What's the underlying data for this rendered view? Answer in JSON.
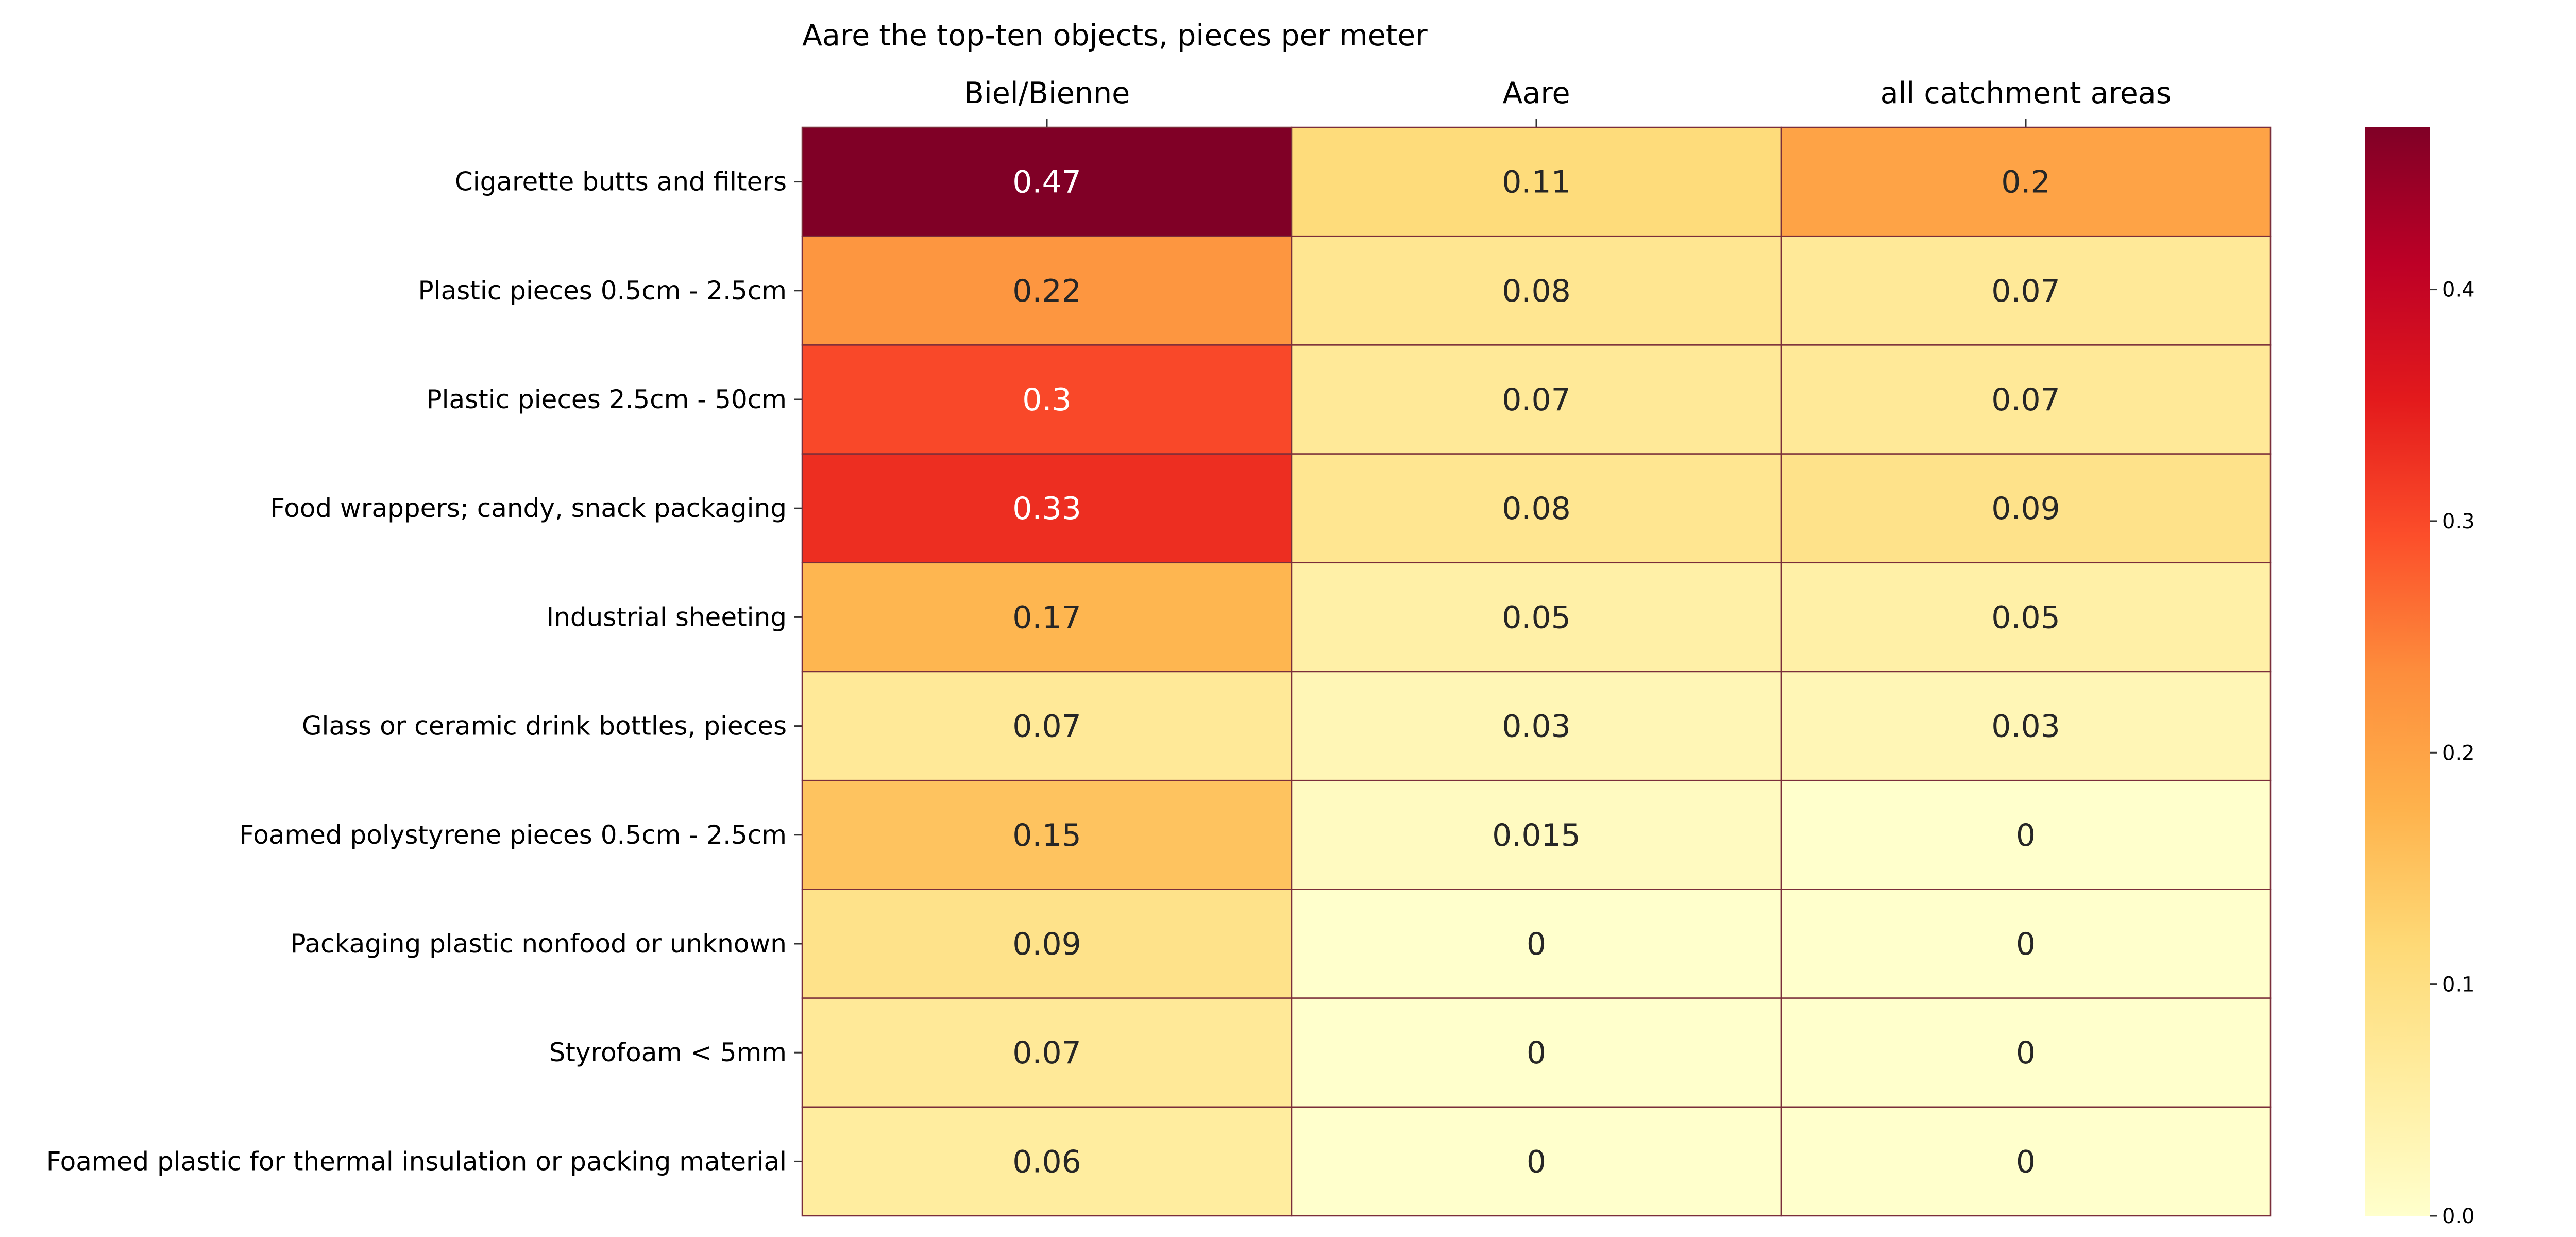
{
  "chart_data": {
    "type": "heatmap",
    "title": "Aare the top-ten objects, pieces per meter",
    "columns": [
      "Biel/Bienne",
      "Aare",
      "all catchment areas"
    ],
    "rows": [
      "Cigarette butts and filters",
      "Plastic pieces 0.5cm - 2.5cm",
      "Plastic pieces 2.5cm - 50cm",
      "Food wrappers; candy, snack packaging",
      "Industrial sheeting",
      "Glass or ceramic drink bottles, pieces",
      "Foamed polystyrene pieces 0.5cm - 2.5cm",
      "Packaging plastic nonfood or unknown",
      "Styrofoam < 5mm",
      "Foamed plastic  for thermal insulation or packing material"
    ],
    "values": [
      [
        0.47,
        0.11,
        0.2
      ],
      [
        0.22,
        0.08,
        0.07
      ],
      [
        0.3,
        0.07,
        0.07
      ],
      [
        0.33,
        0.08,
        0.09
      ],
      [
        0.17,
        0.05,
        0.05
      ],
      [
        0.07,
        0.03,
        0.03
      ],
      [
        0.15,
        0.015,
        0
      ],
      [
        0.09,
        0,
        0
      ],
      [
        0.07,
        0,
        0
      ],
      [
        0.06,
        0,
        0
      ]
    ],
    "value_labels": [
      [
        "0.47",
        "0.11",
        "0.2"
      ],
      [
        "0.22",
        "0.08",
        "0.07"
      ],
      [
        "0.3",
        "0.07",
        "0.07"
      ],
      [
        "0.33",
        "0.08",
        "0.09"
      ],
      [
        "0.17",
        "0.05",
        "0.05"
      ],
      [
        "0.07",
        "0.03",
        "0.03"
      ],
      [
        "0.15",
        "0.015",
        "0"
      ],
      [
        "0.09",
        "0",
        "0"
      ],
      [
        "0.07",
        "0",
        "0"
      ],
      [
        "0.06",
        "0",
        "0"
      ]
    ],
    "colormap": "YlOrRd",
    "cell_border_color": "#7a2e3a",
    "colorbar": {
      "range": [
        0,
        0.47
      ],
      "ticks": [
        0.0,
        0.1,
        0.2,
        0.3,
        0.4
      ],
      "tick_labels": [
        "0.0",
        "0.1",
        "0.2",
        "0.3",
        "0.4"
      ],
      "placement": "right"
    },
    "xaxis_position": "top",
    "grid": false
  }
}
